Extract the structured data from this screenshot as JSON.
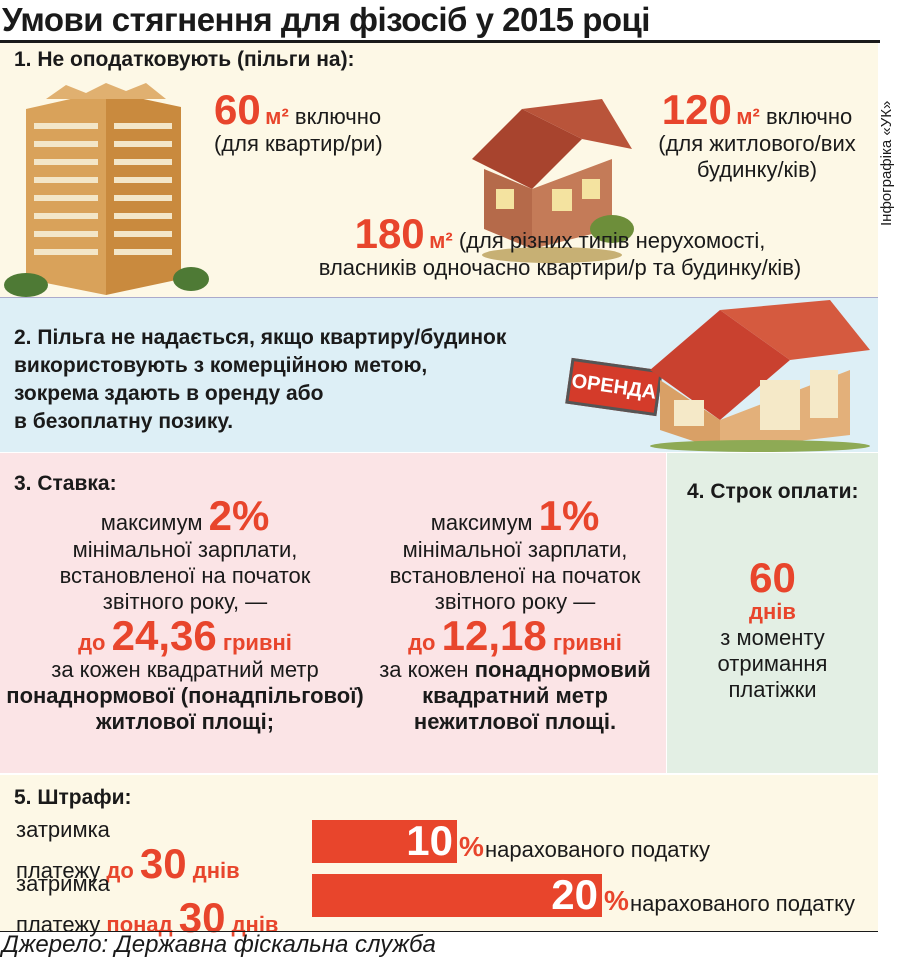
{
  "title": "Умови стягнення для фізосіб у 2015 році",
  "credit": "Інфографіка «УК»",
  "colors": {
    "accent": "#e8452c",
    "panel_beige": "#fdf8e6",
    "panel_blue": "#ddeff6",
    "panel_pink": "#fbe4e6",
    "panel_green": "#e3efe4"
  },
  "section1": {
    "heading": "1. Не оподатковують (пільги на):",
    "item_a": {
      "value": "60",
      "unit": "м²",
      "suffix": " включно",
      "note": "(для квартир/ри)"
    },
    "item_b": {
      "value": "120",
      "unit": "м²",
      "suffix": " включно",
      "note_1": "(для житлового/вих",
      "note_2": "будинку/ків)"
    },
    "item_c": {
      "value": "180",
      "unit": "м²",
      "note_1": " (для різних типів нерухомості,",
      "note_2": "власників одночасно квартири/р та будинку/ків)"
    }
  },
  "section2": {
    "lines": [
      "2. Пільга не надається, якщо квартиру/будинок",
      "використовують з комерційною метою,",
      "зокрема здають в оренду або",
      "в безоплатну позику."
    ],
    "sign_text": "ОРЕНДА"
  },
  "section3": {
    "heading": "3. Ставка:",
    "left": {
      "max_label": "максимум ",
      "max_value": "2%",
      "line_1": "мінімальної зарплати,",
      "line_2": "встановленої на початок",
      "line_3": "звітного року, —",
      "to_label": "до ",
      "amount": "24,36",
      "currency": " гривні",
      "line_4": "за кожен квадратний метр",
      "line_5": "понаднормової (понадпільгової)",
      "line_6": "житлової площі;"
    },
    "right": {
      "max_label": "максимум ",
      "max_value": "1%",
      "line_1": "мінімальної зарплати,",
      "line_2": "встановленої на початок",
      "line_3": "звітного року —",
      "to_label": "до ",
      "amount": "12,18",
      "currency": " гривні",
      "line_4a": "за кожен ",
      "line_4b": "понаднормовий",
      "line_5": "квадратний метр",
      "line_6": "нежитлової площі."
    }
  },
  "section4": {
    "heading": "4. Строк оплати:",
    "value": "60",
    "unit": "днів",
    "line_1": "з моменту",
    "line_2": "отримання",
    "line_3": "платіжки"
  },
  "section5": {
    "heading": "5. Штрафи:",
    "rows": [
      {
        "label_1": "затримка",
        "label_2a": "платежу ",
        "label_2b": "до ",
        "days": "30",
        "days_unit": " днів",
        "percent": 10,
        "pct_text": "10",
        "pct_sign": "%",
        "desc": "нарахованого податку"
      },
      {
        "label_1": "затримка",
        "label_2a": "платежу ",
        "label_2b": "понад ",
        "days": "30",
        "days_unit": " днів",
        "percent": 20,
        "pct_text": "20",
        "pct_sign": "%",
        "desc": "нарахованого податку"
      }
    ]
  },
  "source": "Джерело: Державна фіскальна служба"
}
